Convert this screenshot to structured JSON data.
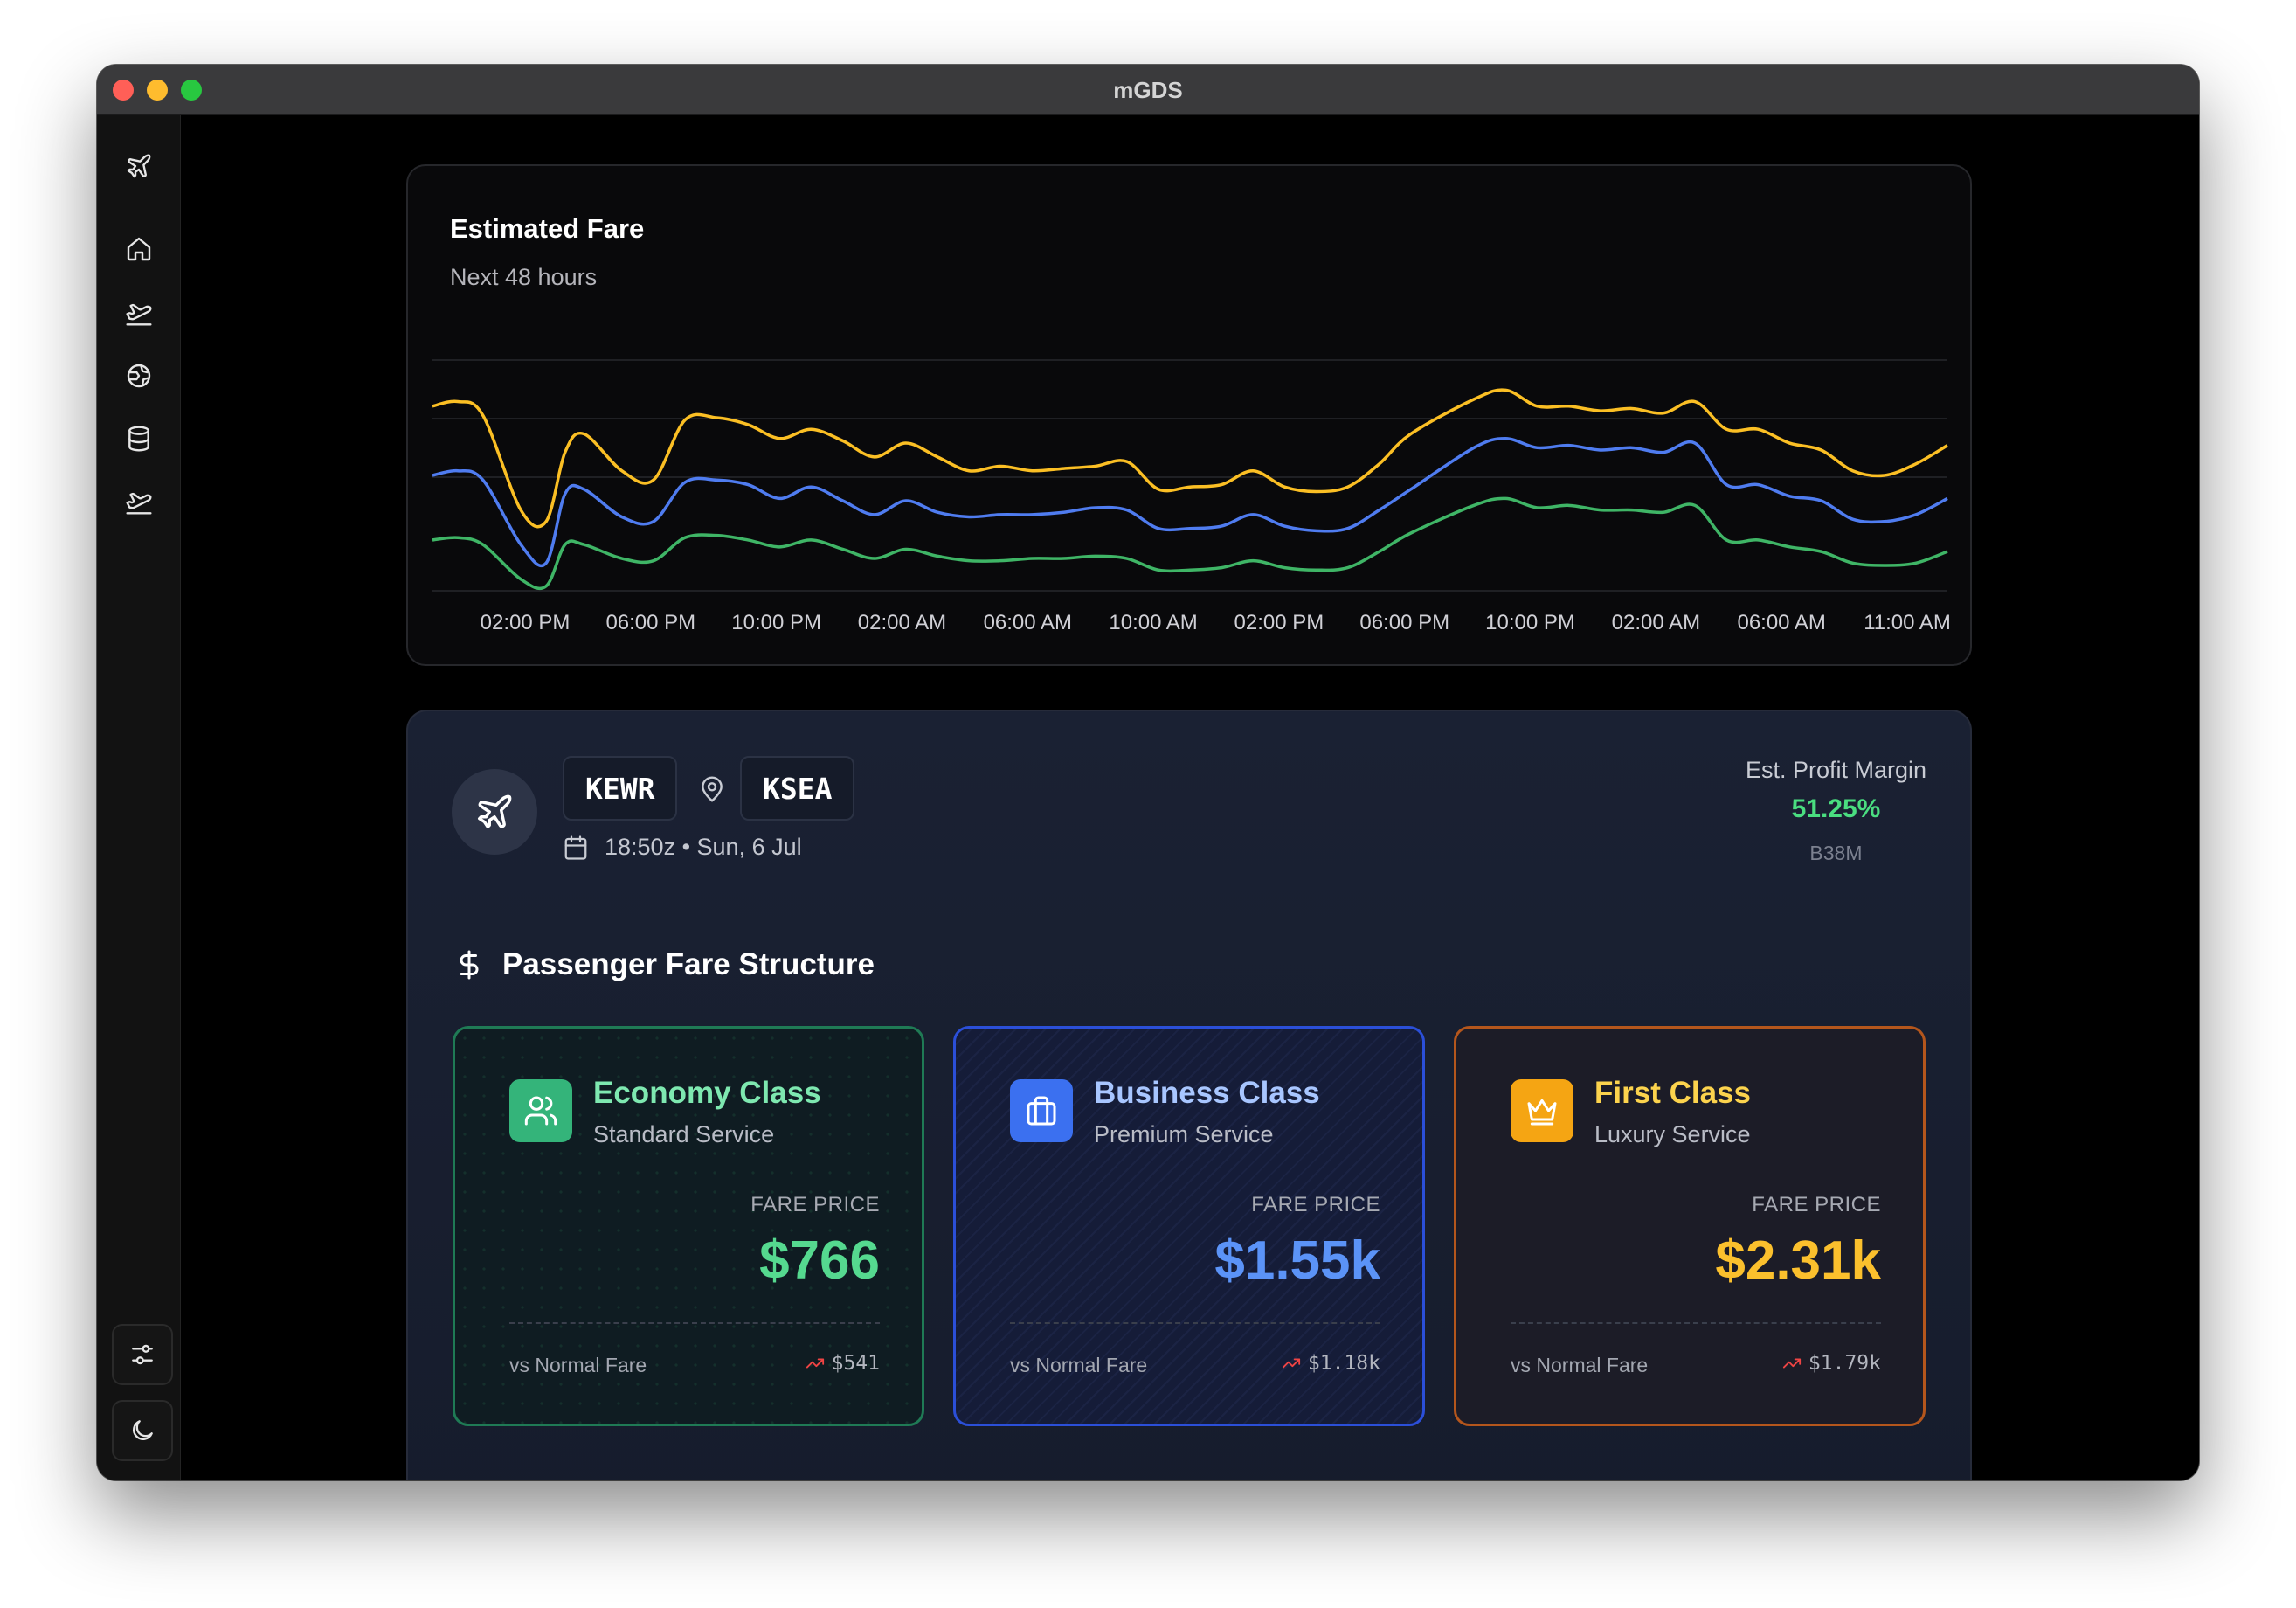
{
  "window": {
    "title": "mGDS"
  },
  "sidebar": {
    "items": [
      {
        "name": "plane-icon"
      },
      {
        "name": "home-icon"
      },
      {
        "name": "plane-takeoff-icon"
      },
      {
        "name": "globe-icon"
      },
      {
        "name": "database-icon"
      },
      {
        "name": "plane-takeoff-icon"
      }
    ],
    "bottom": [
      {
        "name": "sliders-icon"
      },
      {
        "name": "moon-icon"
      }
    ]
  },
  "chart": {
    "title": "Estimated Fare",
    "subtitle": "Next 48 hours"
  },
  "chart_data": {
    "type": "line",
    "title": "Estimated Fare",
    "subtitle": "Next 48 hours",
    "x_ticks": [
      "02:00 PM",
      "06:00 PM",
      "10:00 PM",
      "02:00 AM",
      "06:00 AM",
      "10:00 AM",
      "02:00 PM",
      "06:00 PM",
      "10:00 PM",
      "02:00 AM",
      "06:00 AM",
      "11:00 AM"
    ],
    "x_hours_range": [
      0,
      48
    ],
    "y_range": [
      0,
      100
    ],
    "grid": true,
    "series": [
      {
        "name": "first",
        "color": "#fbbf24",
        "points": [
          [
            0,
            80
          ],
          [
            0.8,
            82
          ],
          [
            1.6,
            76
          ],
          [
            2.8,
            35
          ],
          [
            3.6,
            30
          ],
          [
            4.2,
            60
          ],
          [
            4.8,
            68
          ],
          [
            6,
            52
          ],
          [
            7,
            48
          ],
          [
            8,
            74
          ],
          [
            9,
            75
          ],
          [
            10,
            72
          ],
          [
            11,
            66
          ],
          [
            12,
            70
          ],
          [
            13,
            65
          ],
          [
            14,
            58
          ],
          [
            15,
            64
          ],
          [
            16,
            58
          ],
          [
            17,
            52
          ],
          [
            18,
            54
          ],
          [
            19,
            52
          ],
          [
            20,
            53
          ],
          [
            21,
            54
          ],
          [
            22,
            56
          ],
          [
            23,
            44
          ],
          [
            24,
            45
          ],
          [
            25,
            46
          ],
          [
            26,
            52
          ],
          [
            27,
            45
          ],
          [
            28,
            43
          ],
          [
            29,
            45
          ],
          [
            30,
            55
          ],
          [
            31,
            68
          ],
          [
            33,
            83
          ],
          [
            34,
            87
          ],
          [
            35,
            80
          ],
          [
            36,
            80
          ],
          [
            37,
            78
          ],
          [
            38,
            79
          ],
          [
            39,
            77
          ],
          [
            40,
            82
          ],
          [
            41,
            70
          ],
          [
            42,
            70
          ],
          [
            43,
            64
          ],
          [
            44,
            61
          ],
          [
            45,
            52
          ],
          [
            46,
            50
          ],
          [
            47,
            55
          ],
          [
            48,
            63
          ]
        ]
      },
      {
        "name": "business",
        "color": "#4f7cf0",
        "points": [
          [
            0,
            50
          ],
          [
            0.8,
            52
          ],
          [
            1.6,
            48
          ],
          [
            2.8,
            20
          ],
          [
            3.6,
            12
          ],
          [
            4.2,
            42
          ],
          [
            4.8,
            44
          ],
          [
            6,
            32
          ],
          [
            7,
            30
          ],
          [
            8,
            47
          ],
          [
            9,
            48
          ],
          [
            10,
            46
          ],
          [
            11,
            40
          ],
          [
            12,
            45
          ],
          [
            13,
            39
          ],
          [
            14,
            33
          ],
          [
            15,
            39
          ],
          [
            16,
            34
          ],
          [
            17,
            32
          ],
          [
            18,
            33
          ],
          [
            19,
            33
          ],
          [
            20,
            34
          ],
          [
            21,
            36
          ],
          [
            22,
            35
          ],
          [
            23,
            27
          ],
          [
            24,
            27
          ],
          [
            25,
            28
          ],
          [
            26,
            33
          ],
          [
            27,
            28
          ],
          [
            28,
            26
          ],
          [
            29,
            27
          ],
          [
            30,
            35
          ],
          [
            31,
            44
          ],
          [
            33,
            62
          ],
          [
            34,
            66
          ],
          [
            35,
            62
          ],
          [
            36,
            63
          ],
          [
            37,
            61
          ],
          [
            38,
            62
          ],
          [
            39,
            60
          ],
          [
            40,
            64
          ],
          [
            41,
            46
          ],
          [
            42,
            46
          ],
          [
            43,
            41
          ],
          [
            44,
            39
          ],
          [
            45,
            31
          ],
          [
            46,
            30
          ],
          [
            47,
            33
          ],
          [
            48,
            40
          ]
        ]
      },
      {
        "name": "economy",
        "color": "#3fb566",
        "points": [
          [
            0,
            22
          ],
          [
            0.8,
            23
          ],
          [
            1.6,
            20
          ],
          [
            2.8,
            5
          ],
          [
            3.6,
            2
          ],
          [
            4.2,
            20
          ],
          [
            4.8,
            20
          ],
          [
            6,
            14
          ],
          [
            7,
            13
          ],
          [
            8,
            23
          ],
          [
            9,
            24
          ],
          [
            10,
            22
          ],
          [
            11,
            19
          ],
          [
            12,
            22
          ],
          [
            13,
            18
          ],
          [
            14,
            14
          ],
          [
            15,
            18
          ],
          [
            16,
            15
          ],
          [
            17,
            13
          ],
          [
            18,
            13
          ],
          [
            19,
            14
          ],
          [
            20,
            14
          ],
          [
            21,
            15
          ],
          [
            22,
            14
          ],
          [
            23,
            9
          ],
          [
            24,
            9
          ],
          [
            25,
            10
          ],
          [
            26,
            13
          ],
          [
            27,
            10
          ],
          [
            28,
            9
          ],
          [
            29,
            10
          ],
          [
            30,
            17
          ],
          [
            31,
            25
          ],
          [
            33,
            37
          ],
          [
            34,
            40
          ],
          [
            35,
            36
          ],
          [
            36,
            37
          ],
          [
            37,
            35
          ],
          [
            38,
            35
          ],
          [
            39,
            34
          ],
          [
            40,
            37
          ],
          [
            41,
            22
          ],
          [
            42,
            22
          ],
          [
            43,
            19
          ],
          [
            44,
            17
          ],
          [
            45,
            12
          ],
          [
            46,
            11
          ],
          [
            47,
            12
          ],
          [
            48,
            17
          ]
        ]
      }
    ]
  },
  "route": {
    "origin": "KEWR",
    "destination": "KSEA",
    "datetime": "18:50z • Sun, 6 Jul",
    "profit_label": "Est. Profit Margin",
    "profit_value": "51.25%",
    "aircraft": "B38M"
  },
  "fare_section": {
    "title": "Passenger Fare Structure"
  },
  "fares": [
    {
      "name": "Economy Class",
      "service": "Standard Service",
      "price_label": "FARE PRICE",
      "price": "$766",
      "vs_label": "vs Normal Fare",
      "normal": "$541",
      "accent": "#55d98f",
      "icon": "users-icon"
    },
    {
      "name": "Business Class",
      "service": "Premium Service",
      "price_label": "FARE PRICE",
      "price": "$1.55k",
      "vs_label": "vs Normal Fare",
      "normal": "$1.18k",
      "accent": "#5b93f7",
      "icon": "briefcase-icon"
    },
    {
      "name": "First Class",
      "service": "Luxury Service",
      "price_label": "FARE PRICE",
      "price": "$2.31k",
      "vs_label": "vs Normal Fare",
      "normal": "$1.79k",
      "accent": "#fbc02d",
      "icon": "crown-icon"
    }
  ]
}
